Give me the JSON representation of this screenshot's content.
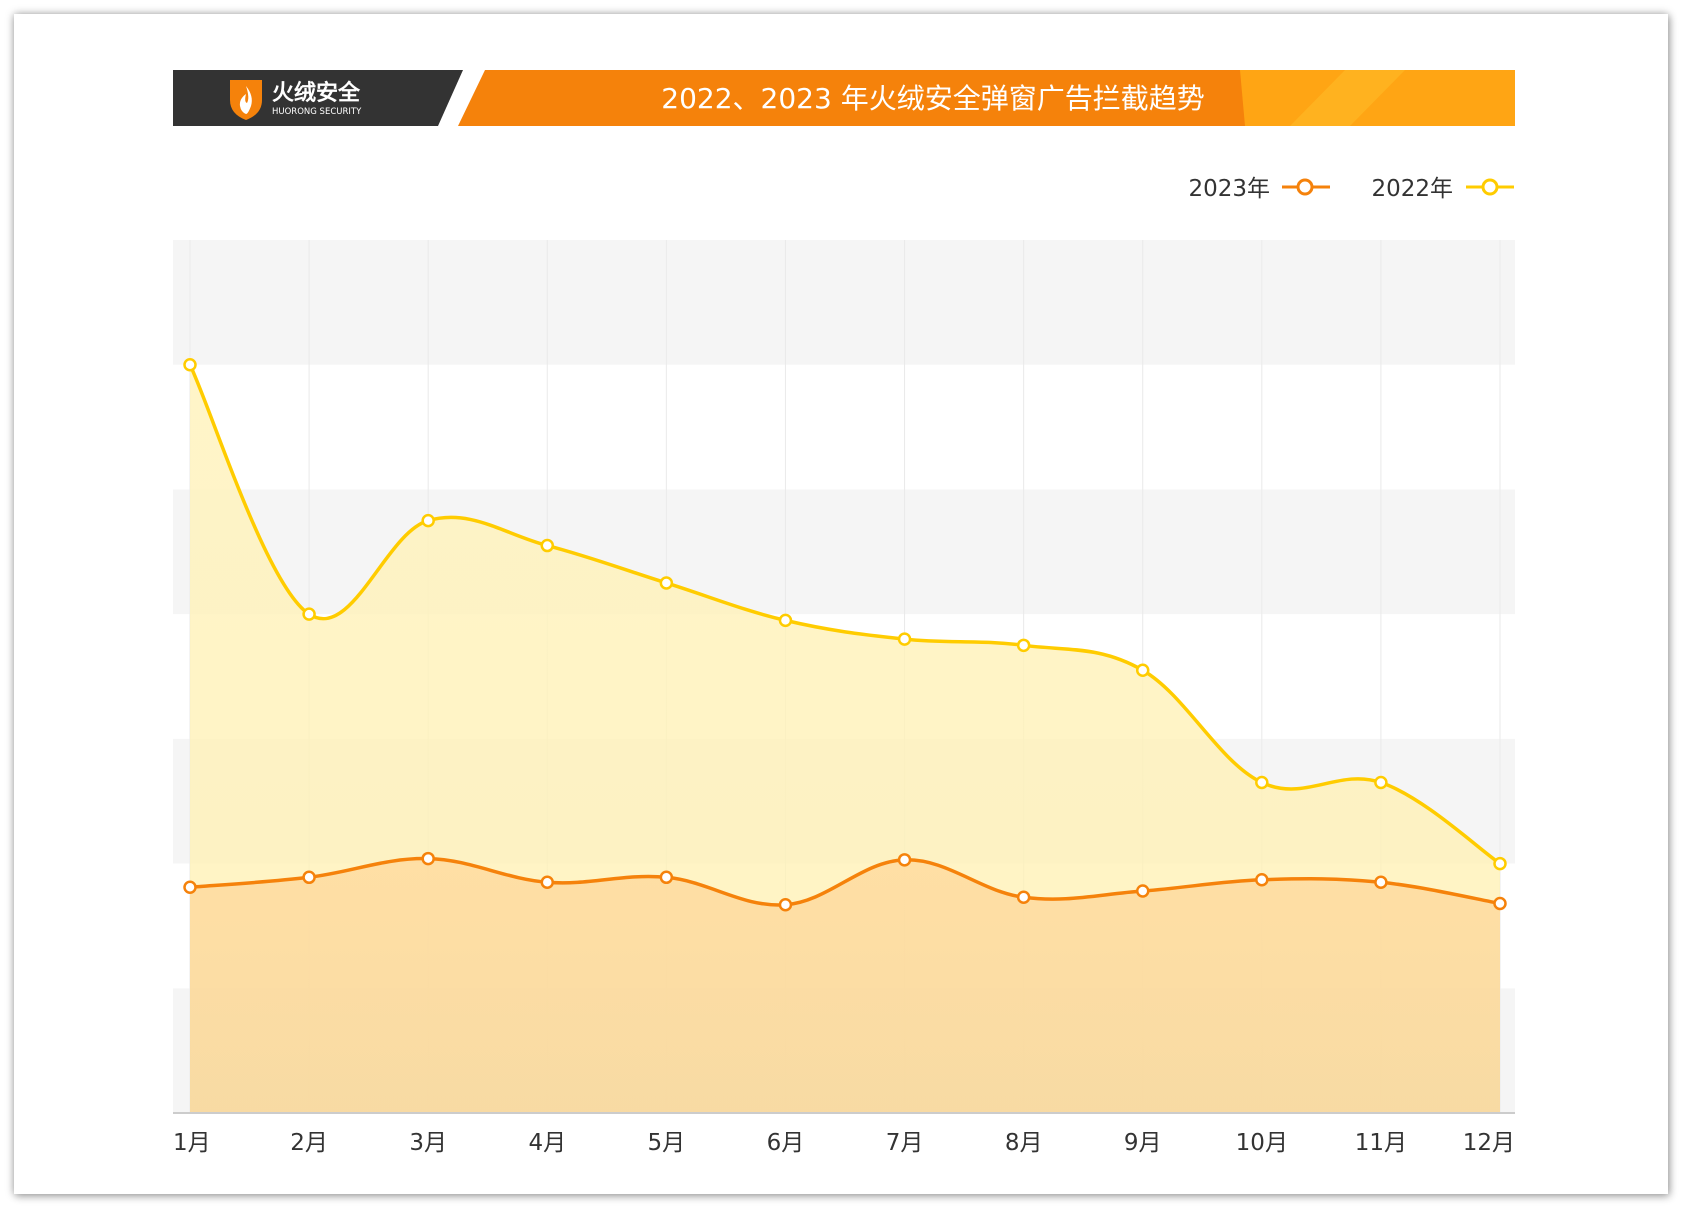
{
  "header": {
    "brand_name": "火绒安全",
    "brand_sub": "HUORONG SECURITY",
    "title": "2022、2023 年火绒安全弹窗广告拦截趋势"
  },
  "colors": {
    "orange": "#F5820B",
    "yellow": "#FFCC00",
    "dark": "#333333",
    "band": "#F5F5F5"
  },
  "chart_data": {
    "type": "area",
    "title": "2022、2023 年火绒安全弹窗广告拦截趋势",
    "categories": [
      "1月",
      "2月",
      "3月",
      "4月",
      "5月",
      "6月",
      "7月",
      "8月",
      "9月",
      "10月",
      "11月",
      "12月"
    ],
    "series": [
      {
        "name": "2023年",
        "values": [
          18.1,
          18.9,
          20.4,
          18.5,
          18.9,
          16.7,
          20.3,
          17.3,
          17.8,
          18.7,
          18.5,
          16.8
        ]
      },
      {
        "name": "2022年",
        "values": [
          60.0,
          40.0,
          47.5,
          45.5,
          42.5,
          39.5,
          38.0,
          37.5,
          35.5,
          26.5,
          26.5,
          20.0
        ]
      }
    ],
    "legend": [
      "2023年",
      "2022年"
    ],
    "legend_position": "top-right",
    "ylim": [
      0,
      70
    ],
    "y_gridlines": [
      10,
      20,
      30,
      40,
      50,
      60,
      70
    ],
    "xlabel": "",
    "ylabel": ""
  }
}
